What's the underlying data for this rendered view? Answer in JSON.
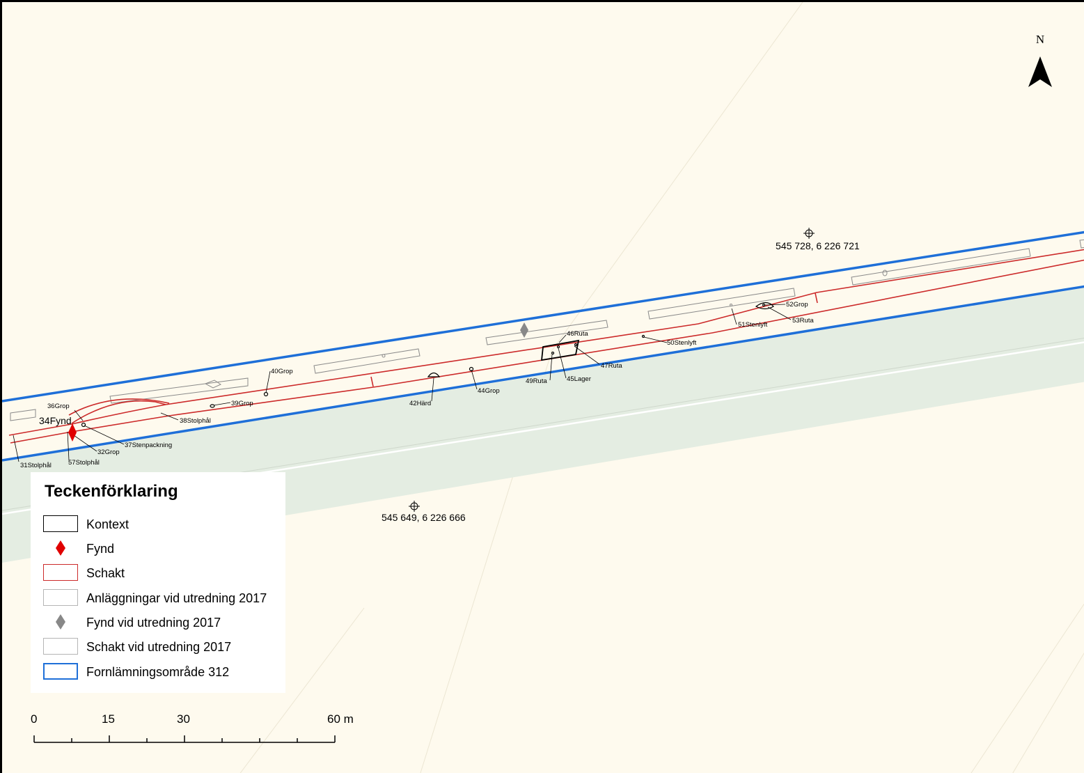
{
  "map": {
    "north_label": "N",
    "coordinates": [
      {
        "text": "545 728, 6 226 721"
      },
      {
        "text": "545 649, 6 226 666"
      }
    ],
    "feature_labels": [
      "31Stolphål",
      "57Stolphål",
      "32Grop",
      "34Fynd",
      "36Grop",
      "37Stenpackning",
      "38Stolphål",
      "39Grop",
      "40Grop",
      "42Härd",
      "44Grop",
      "46Ruta",
      "47Ruta",
      "49Ruta",
      "45Lager",
      "50Stenlyft",
      "51Stenlyft",
      "52Grop",
      "53Ruta"
    ],
    "colors": {
      "background": "#fefaee",
      "green_area": "#e4ede2",
      "schakt": "#cc2a2a",
      "fornlamning": "#1e6fd8",
      "kontext": "#000000",
      "fynd": "#e00000",
      "utredning_fynd": "#888888",
      "utredning_schakt": "#8a8a8a"
    }
  },
  "legend": {
    "title": "Teckenförklaring",
    "items": [
      {
        "label": "Kontext",
        "icon": "black-outline-rect"
      },
      {
        "label": "Fynd",
        "icon": "red-diamond"
      },
      {
        "label": "Schakt",
        "icon": "red-outline-rect"
      },
      {
        "label": "Anläggningar vid utredning 2017",
        "icon": "grey-outline-rect"
      },
      {
        "label": "Fynd vid utredning 2017",
        "icon": "grey-diamond"
      },
      {
        "label": "Schakt vid utredning 2017",
        "icon": "grey-outline-rect"
      },
      {
        "label": "Fornlämningsområde 312",
        "icon": "blue-outline-rect"
      }
    ]
  },
  "scalebar": {
    "labels": [
      "0",
      "15",
      "30",
      "60 m"
    ]
  }
}
